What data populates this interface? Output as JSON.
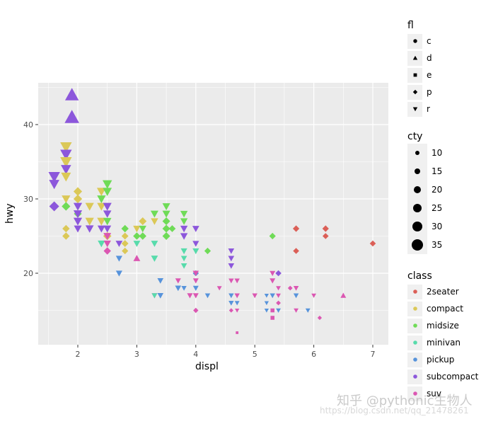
{
  "chart_data": {
    "type": "scatter",
    "title": "",
    "xlabel": "displ",
    "ylabel": "hwy",
    "xlim": [
      1.33,
      7.27
    ],
    "ylim": [
      10.4,
      45.6
    ],
    "xticks": [
      2,
      3,
      4,
      5,
      6,
      7
    ],
    "yticks": [
      20,
      30,
      40
    ],
    "grid": true,
    "legend_position": "right",
    "colors": {
      "2seater": "#db5f57",
      "compact": "#dbc857",
      "midsize": "#6fdb57",
      "minivan": "#57dbab",
      "pickup": "#5793db",
      "subcompact": "#8c57db",
      "suv": "#db57b2"
    },
    "points": [
      {
        "x": 1.9,
        "y": 44,
        "class": "subcompact",
        "fl": "d",
        "cty": 33
      },
      {
        "x": 1.9,
        "y": 41,
        "class": "subcompact",
        "fl": "d",
        "cty": 35
      },
      {
        "x": 1.8,
        "y": 37,
        "class": "compact",
        "fl": "r",
        "cty": 28
      },
      {
        "x": 1.8,
        "y": 36,
        "class": "subcompact",
        "fl": "r",
        "cty": 28
      },
      {
        "x": 1.8,
        "y": 35,
        "class": "compact",
        "fl": "r",
        "cty": 28
      },
      {
        "x": 1.8,
        "y": 34,
        "class": "subcompact",
        "fl": "r",
        "cty": 25
      },
      {
        "x": 1.8,
        "y": 33,
        "class": "compact",
        "fl": "r",
        "cty": 24
      },
      {
        "x": 1.6,
        "y": 33,
        "class": "subcompact",
        "fl": "r",
        "cty": 28
      },
      {
        "x": 1.6,
        "y": 32,
        "class": "subcompact",
        "fl": "r",
        "cty": 25
      },
      {
        "x": 1.8,
        "y": 30,
        "class": "compact",
        "fl": "r",
        "cty": 21
      },
      {
        "x": 1.6,
        "y": 29,
        "class": "subcompact",
        "fl": "p",
        "cty": 24
      },
      {
        "x": 1.8,
        "y": 29,
        "class": "midsize",
        "fl": "p",
        "cty": 21
      },
      {
        "x": 1.8,
        "y": 26,
        "class": "compact",
        "fl": "p",
        "cty": 18
      },
      {
        "x": 1.8,
        "y": 25,
        "class": "compact",
        "fl": "p",
        "cty": 18
      },
      {
        "x": 2.0,
        "y": 31,
        "class": "compact",
        "fl": "p",
        "cty": 21
      },
      {
        "x": 2.0,
        "y": 30,
        "class": "compact",
        "fl": "p",
        "cty": 21
      },
      {
        "x": 2.0,
        "y": 29,
        "class": "subcompact",
        "fl": "r",
        "cty": 21
      },
      {
        "x": 2.0,
        "y": 28,
        "class": "midsize",
        "fl": "p",
        "cty": 19
      },
      {
        "x": 2.0,
        "y": 28,
        "class": "subcompact",
        "fl": "r",
        "cty": 21
      },
      {
        "x": 2.0,
        "y": 27,
        "class": "compact",
        "fl": "r",
        "cty": 19
      },
      {
        "x": 2.0,
        "y": 27,
        "class": "subcompact",
        "fl": "r",
        "cty": 21
      },
      {
        "x": 2.0,
        "y": 26,
        "class": "subcompact",
        "fl": "r",
        "cty": 19
      },
      {
        "x": 2.2,
        "y": 29,
        "class": "compact",
        "fl": "r",
        "cty": 21
      },
      {
        "x": 2.2,
        "y": 27,
        "class": "compact",
        "fl": "r",
        "cty": 21
      },
      {
        "x": 2.2,
        "y": 26,
        "class": "subcompact",
        "fl": "r",
        "cty": 20
      },
      {
        "x": 2.4,
        "y": 31,
        "class": "compact",
        "fl": "r",
        "cty": 22
      },
      {
        "x": 2.4,
        "y": 30,
        "class": "midsize",
        "fl": "r",
        "cty": 21
      },
      {
        "x": 2.4,
        "y": 29,
        "class": "compact",
        "fl": "r",
        "cty": 21
      },
      {
        "x": 2.4,
        "y": 27,
        "class": "compact",
        "fl": "r",
        "cty": 21
      },
      {
        "x": 2.4,
        "y": 26,
        "class": "subcompact",
        "fl": "r",
        "cty": 19
      },
      {
        "x": 2.4,
        "y": 24,
        "class": "minivan",
        "fl": "r",
        "cty": 18
      },
      {
        "x": 2.5,
        "y": 32,
        "class": "midsize",
        "fl": "r",
        "cty": 23
      },
      {
        "x": 2.5,
        "y": 31,
        "class": "midsize",
        "fl": "r",
        "cty": 22
      },
      {
        "x": 2.5,
        "y": 29,
        "class": "subcompact",
        "fl": "r",
        "cty": 21
      },
      {
        "x": 2.5,
        "y": 28,
        "class": "subcompact",
        "fl": "r",
        "cty": 20
      },
      {
        "x": 2.5,
        "y": 27,
        "class": "midsize",
        "fl": "r",
        "cty": 20
      },
      {
        "x": 2.5,
        "y": 26,
        "class": "subcompact",
        "fl": "r",
        "cty": 19
      },
      {
        "x": 2.5,
        "y": 25,
        "class": "compact",
        "fl": "p",
        "cty": 20
      },
      {
        "x": 2.5,
        "y": 25,
        "class": "suv",
        "fl": "r",
        "cty": 19
      },
      {
        "x": 2.5,
        "y": 24,
        "class": "suv",
        "fl": "r",
        "cty": 18
      },
      {
        "x": 2.5,
        "y": 23,
        "class": "suv",
        "fl": "p",
        "cty": 18
      },
      {
        "x": 2.7,
        "y": 24,
        "class": "subcompact",
        "fl": "r",
        "cty": 17
      },
      {
        "x": 2.7,
        "y": 22,
        "class": "pickup",
        "fl": "r",
        "cty": 16
      },
      {
        "x": 2.7,
        "y": 20,
        "class": "pickup",
        "fl": "r",
        "cty": 16
      },
      {
        "x": 2.8,
        "y": 26,
        "class": "midsize",
        "fl": "p",
        "cty": 18
      },
      {
        "x": 2.8,
        "y": 25,
        "class": "compact",
        "fl": "p",
        "cty": 17
      },
      {
        "x": 2.8,
        "y": 24,
        "class": "compact",
        "fl": "p",
        "cty": 17
      },
      {
        "x": 2.8,
        "y": 23,
        "class": "compact",
        "fl": "p",
        "cty": 16
      },
      {
        "x": 3.0,
        "y": 26,
        "class": "compact",
        "fl": "r",
        "cty": 18
      },
      {
        "x": 3.0,
        "y": 25,
        "class": "midsize",
        "fl": "p",
        "cty": 18
      },
      {
        "x": 3.0,
        "y": 24,
        "class": "minivan",
        "fl": "r",
        "cty": 17
      },
      {
        "x": 3.0,
        "y": 22,
        "class": "suv",
        "fl": "d",
        "cty": 17
      },
      {
        "x": 3.1,
        "y": 27,
        "class": "compact",
        "fl": "p",
        "cty": 19
      },
      {
        "x": 3.1,
        "y": 26,
        "class": "midsize",
        "fl": "r",
        "cty": 18
      },
      {
        "x": 3.1,
        "y": 25,
        "class": "midsize",
        "fl": "p",
        "cty": 18
      },
      {
        "x": 3.3,
        "y": 28,
        "class": "midsize",
        "fl": "r",
        "cty": 19
      },
      {
        "x": 3.3,
        "y": 27,
        "class": "compact",
        "fl": "r",
        "cty": 18
      },
      {
        "x": 3.3,
        "y": 24,
        "class": "minivan",
        "fl": "r",
        "cty": 17
      },
      {
        "x": 3.3,
        "y": 22,
        "class": "minivan",
        "fl": "r",
        "cty": 17
      },
      {
        "x": 3.3,
        "y": 17,
        "class": "suv",
        "fl": "r",
        "cty": 14
      },
      {
        "x": 3.3,
        "y": 17,
        "class": "minivan",
        "fl": "r",
        "cty": 14
      },
      {
        "x": 3.4,
        "y": 19,
        "class": "pickup",
        "fl": "r",
        "cty": 15
      },
      {
        "x": 3.4,
        "y": 17,
        "class": "pickup",
        "fl": "r",
        "cty": 15
      },
      {
        "x": 3.5,
        "y": 29,
        "class": "midsize",
        "fl": "r",
        "cty": 19
      },
      {
        "x": 3.5,
        "y": 28,
        "class": "midsize",
        "fl": "r",
        "cty": 19
      },
      {
        "x": 3.5,
        "y": 27,
        "class": "midsize",
        "fl": "p",
        "cty": 19
      },
      {
        "x": 3.5,
        "y": 26,
        "class": "midsize",
        "fl": "p",
        "cty": 19
      },
      {
        "x": 3.5,
        "y": 25,
        "class": "midsize",
        "fl": "p",
        "cty": 19
      },
      {
        "x": 3.6,
        "y": 26,
        "class": "midsize",
        "fl": "p",
        "cty": 17
      },
      {
        "x": 3.7,
        "y": 19,
        "class": "suv",
        "fl": "r",
        "cty": 14
      },
      {
        "x": 3.7,
        "y": 18,
        "class": "pickup",
        "fl": "r",
        "cty": 15
      },
      {
        "x": 3.8,
        "y": 28,
        "class": "midsize",
        "fl": "r",
        "cty": 18
      },
      {
        "x": 3.8,
        "y": 27,
        "class": "midsize",
        "fl": "r",
        "cty": 18
      },
      {
        "x": 3.8,
        "y": 26,
        "class": "subcompact",
        "fl": "r",
        "cty": 18
      },
      {
        "x": 3.8,
        "y": 25,
        "class": "subcompact",
        "fl": "r",
        "cty": 18
      },
      {
        "x": 3.8,
        "y": 23,
        "class": "minivan",
        "fl": "r",
        "cty": 16
      },
      {
        "x": 3.8,
        "y": 22,
        "class": "minivan",
        "fl": "r",
        "cty": 15
      },
      {
        "x": 3.8,
        "y": 21,
        "class": "minivan",
        "fl": "r",
        "cty": 15
      },
      {
        "x": 3.8,
        "y": 18,
        "class": "pickup",
        "fl": "r",
        "cty": 13
      },
      {
        "x": 3.9,
        "y": 17,
        "class": "suv",
        "fl": "r",
        "cty": 14
      },
      {
        "x": 4.0,
        "y": 26,
        "class": "subcompact",
        "fl": "r",
        "cty": 17
      },
      {
        "x": 4.0,
        "y": 24,
        "class": "subcompact",
        "fl": "r",
        "cty": 16
      },
      {
        "x": 4.0,
        "y": 23,
        "class": "minivan",
        "fl": "r",
        "cty": 16
      },
      {
        "x": 4.0,
        "y": 20,
        "class": "pickup",
        "fl": "p",
        "cty": 15
      },
      {
        "x": 4.0,
        "y": 20,
        "class": "suv",
        "fl": "r",
        "cty": 15
      },
      {
        "x": 4.0,
        "y": 19,
        "class": "suv",
        "fl": "r",
        "cty": 14
      },
      {
        "x": 4.0,
        "y": 18,
        "class": "pickup",
        "fl": "r",
        "cty": 14
      },
      {
        "x": 4.0,
        "y": 17,
        "class": "suv",
        "fl": "r",
        "cty": 14
      },
      {
        "x": 4.0,
        "y": 15,
        "class": "suv",
        "fl": "p",
        "cty": 13
      },
      {
        "x": 4.2,
        "y": 23,
        "class": "midsize",
        "fl": "p",
        "cty": 16
      },
      {
        "x": 4.2,
        "y": 17,
        "class": "pickup",
        "fl": "r",
        "cty": 13
      },
      {
        "x": 4.4,
        "y": 18,
        "class": "suv",
        "fl": "r",
        "cty": 12
      },
      {
        "x": 4.6,
        "y": 23,
        "class": "subcompact",
        "fl": "r",
        "cty": 15
      },
      {
        "x": 4.6,
        "y": 22,
        "class": "subcompact",
        "fl": "r",
        "cty": 15
      },
      {
        "x": 4.6,
        "y": 21,
        "class": "subcompact",
        "fl": "r",
        "cty": 15
      },
      {
        "x": 4.6,
        "y": 19,
        "class": "suv",
        "fl": "r",
        "cty": 13
      },
      {
        "x": 4.6,
        "y": 17,
        "class": "pickup",
        "fl": "r",
        "cty": 13
      },
      {
        "x": 4.6,
        "y": 16,
        "class": "pickup",
        "fl": "r",
        "cty": 13
      },
      {
        "x": 4.6,
        "y": 15,
        "class": "suv",
        "fl": "p",
        "cty": 11
      },
      {
        "x": 4.7,
        "y": 19,
        "class": "suv",
        "fl": "r",
        "cty": 13
      },
      {
        "x": 4.7,
        "y": 17,
        "class": "suv",
        "fl": "r",
        "cty": 13
      },
      {
        "x": 4.7,
        "y": 16,
        "class": "pickup",
        "fl": "r",
        "cty": 12
      },
      {
        "x": 4.7,
        "y": 15,
        "class": "suv",
        "fl": "r",
        "cty": 11
      },
      {
        "x": 4.7,
        "y": 12,
        "class": "suv",
        "fl": "e",
        "cty": 9
      },
      {
        "x": 5.0,
        "y": 17,
        "class": "suv",
        "fl": "r",
        "cty": 13
      },
      {
        "x": 5.2,
        "y": 17,
        "class": "pickup",
        "fl": "r",
        "cty": 11
      },
      {
        "x": 5.2,
        "y": 16,
        "class": "pickup",
        "fl": "r",
        "cty": 11
      },
      {
        "x": 5.2,
        "y": 15,
        "class": "pickup",
        "fl": "r",
        "cty": 11
      },
      {
        "x": 5.3,
        "y": 25,
        "class": "midsize",
        "fl": "p",
        "cty": 16
      },
      {
        "x": 5.3,
        "y": 20,
        "class": "suv",
        "fl": "r",
        "cty": 14
      },
      {
        "x": 5.3,
        "y": 19,
        "class": "suv",
        "fl": "r",
        "cty": 14
      },
      {
        "x": 5.3,
        "y": 17,
        "class": "pickup",
        "fl": "r",
        "cty": 13
      },
      {
        "x": 5.3,
        "y": 15,
        "class": "suv",
        "fl": "e",
        "cty": 13
      },
      {
        "x": 5.3,
        "y": 14,
        "class": "suv",
        "fl": "e",
        "cty": 13
      },
      {
        "x": 5.4,
        "y": 20,
        "class": "subcompact",
        "fl": "p",
        "cty": 15
      },
      {
        "x": 5.4,
        "y": 18,
        "class": "suv",
        "fl": "r",
        "cty": 12
      },
      {
        "x": 5.4,
        "y": 17,
        "class": "suv",
        "fl": "r",
        "cty": 12
      },
      {
        "x": 5.4,
        "y": 16,
        "class": "suv",
        "fl": "p",
        "cty": 12
      },
      {
        "x": 5.4,
        "y": 15,
        "class": "pickup",
        "fl": "r",
        "cty": 12
      },
      {
        "x": 5.6,
        "y": 18,
        "class": "suv",
        "fl": "p",
        "cty": 12
      },
      {
        "x": 5.7,
        "y": 26,
        "class": "2seater",
        "fl": "p",
        "cty": 16
      },
      {
        "x": 5.7,
        "y": 23,
        "class": "2seater",
        "fl": "p",
        "cty": 15
      },
      {
        "x": 5.7,
        "y": 18,
        "class": "suv",
        "fl": "r",
        "cty": 13
      },
      {
        "x": 5.7,
        "y": 17,
        "class": "pickup",
        "fl": "r",
        "cty": 13
      },
      {
        "x": 5.7,
        "y": 15,
        "class": "suv",
        "fl": "r",
        "cty": 12
      },
      {
        "x": 5.9,
        "y": 15,
        "class": "pickup",
        "fl": "r",
        "cty": 12
      },
      {
        "x": 6.0,
        "y": 17,
        "class": "suv",
        "fl": "r",
        "cty": 12
      },
      {
        "x": 6.1,
        "y": 14,
        "class": "suv",
        "fl": "p",
        "cty": 11
      },
      {
        "x": 6.2,
        "y": 26,
        "class": "2seater",
        "fl": "p",
        "cty": 16
      },
      {
        "x": 6.2,
        "y": 25,
        "class": "2seater",
        "fl": "p",
        "cty": 15
      },
      {
        "x": 6.5,
        "y": 17,
        "class": "suv",
        "fl": "d",
        "cty": 14
      },
      {
        "x": 7.0,
        "y": 24,
        "class": "2seater",
        "fl": "p",
        "cty": 15
      }
    ]
  },
  "axes": {
    "x_label": "displ",
    "y_label": "hwy",
    "x_ticks": [
      "2",
      "3",
      "4",
      "5",
      "6",
      "7"
    ],
    "y_ticks": [
      "20",
      "30",
      "40"
    ]
  },
  "legend": {
    "fl": {
      "title": "fl",
      "items": [
        {
          "label": "c",
          "shape": "circle"
        },
        {
          "label": "d",
          "shape": "triangle-up"
        },
        {
          "label": "e",
          "shape": "square"
        },
        {
          "label": "p",
          "shape": "diamond"
        },
        {
          "label": "r",
          "shape": "triangle-down"
        }
      ]
    },
    "cty": {
      "title": "cty",
      "items": [
        {
          "label": "10",
          "size": 3
        },
        {
          "label": "15",
          "size": 4
        },
        {
          "label": "20",
          "size": 5
        },
        {
          "label": "25",
          "size": 6
        },
        {
          "label": "30",
          "size": 7
        },
        {
          "label": "35",
          "size": 8
        }
      ]
    },
    "class": {
      "title": "class",
      "items": [
        {
          "label": "2seater",
          "color": "#db5f57"
        },
        {
          "label": "compact",
          "color": "#dbc857"
        },
        {
          "label": "midsize",
          "color": "#6fdb57"
        },
        {
          "label": "minivan",
          "color": "#57dbab"
        },
        {
          "label": "pickup",
          "color": "#5793db"
        },
        {
          "label": "subcompact",
          "color": "#8c57db"
        },
        {
          "label": "suv",
          "color": "#db57b2"
        }
      ]
    }
  },
  "watermark": {
    "line1": "知乎 @pythonic生物人",
    "line2": "https://blog.csdn.net/qq_21478261"
  }
}
